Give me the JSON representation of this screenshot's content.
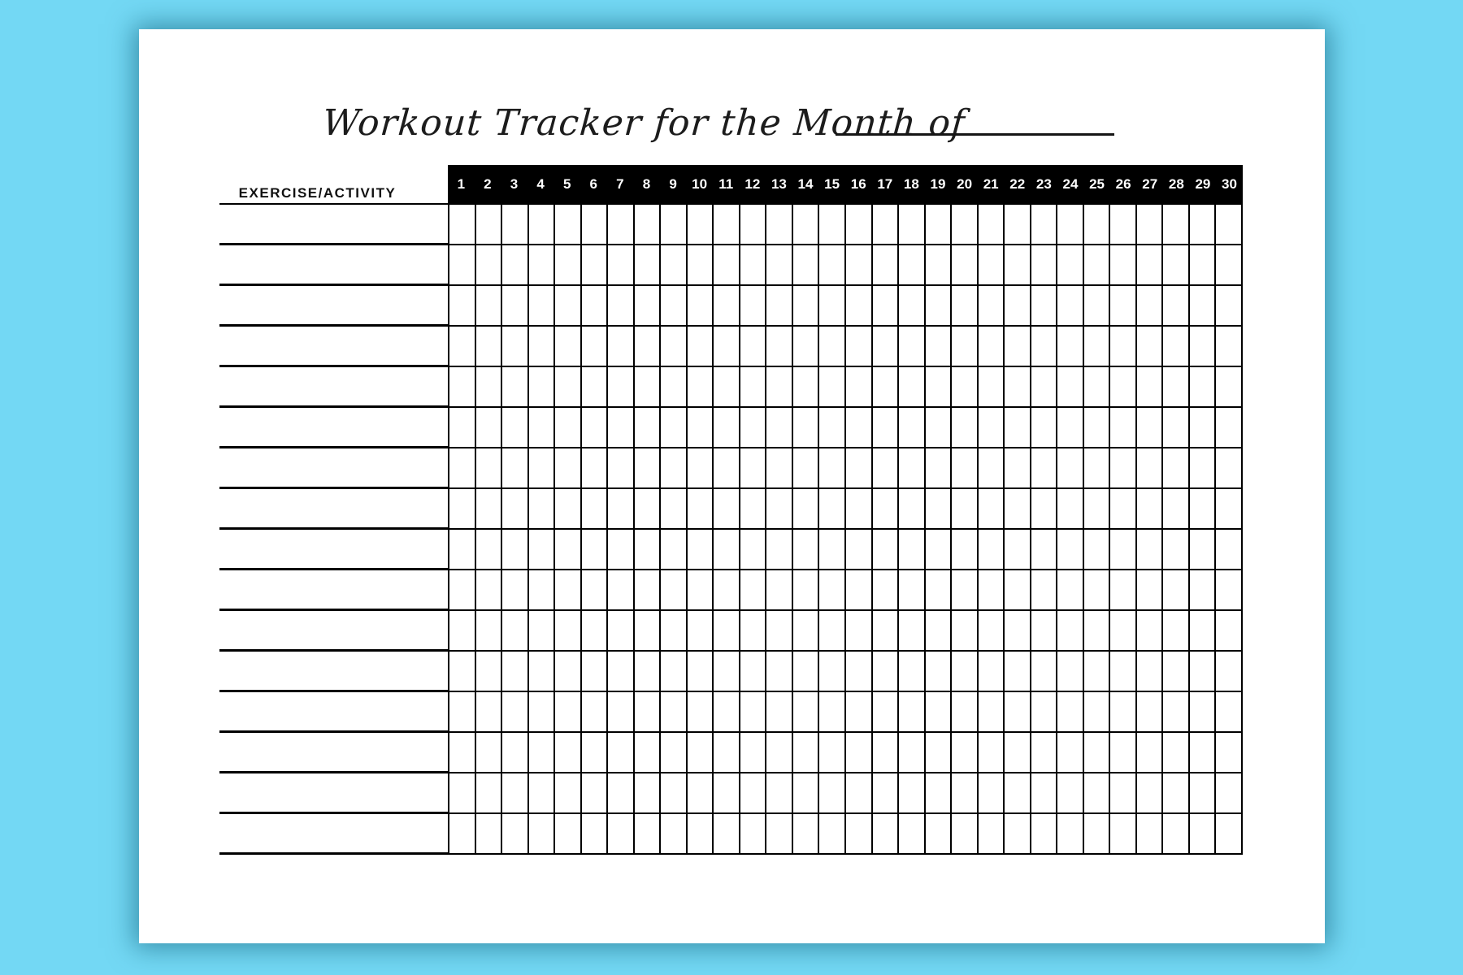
{
  "window": {
    "background_color": "#73d8f4",
    "page_color": "#ffffff"
  },
  "title": {
    "text": "Workout Tracker for the Month of",
    "month_value": ""
  },
  "table": {
    "left_header": "EXERCISE/ACTIVITY",
    "days": [
      "1",
      "2",
      "3",
      "4",
      "5",
      "6",
      "7",
      "8",
      "9",
      "10",
      "11",
      "12",
      "13",
      "14",
      "15",
      "16",
      "17",
      "18",
      "19",
      "20",
      "21",
      "22",
      "23",
      "24",
      "25",
      "26",
      "27",
      "28",
      "29",
      "30"
    ],
    "exercises": [
      "",
      "",
      "",
      "",
      "",
      "",
      "",
      "",
      "",
      "",
      "",
      "",
      "",
      "",
      "",
      ""
    ],
    "cell_state_all": ""
  },
  "colors": {
    "grid_line": "#000000",
    "day_bar_background": "#000000",
    "day_bar_text": "#ffffff",
    "title_text": "#1c1c1c"
  }
}
